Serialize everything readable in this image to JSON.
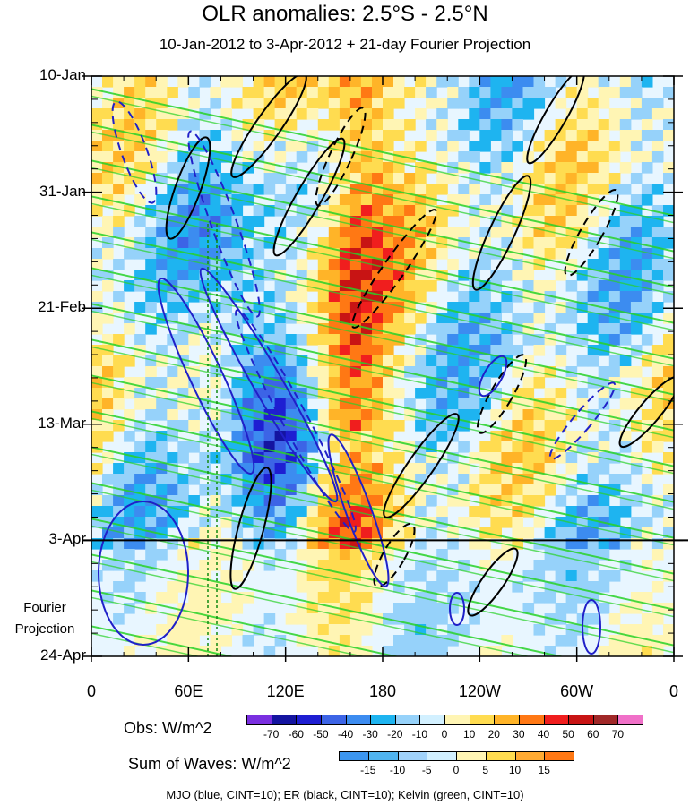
{
  "chart_data": {
    "type": "heatmap",
    "title": "OLR anomalies: 2.5°S - 2.5°N",
    "subtitle": "10-Jan-2012 to 3-Apr-2012 + 21-day Fourier Projection",
    "x_ticks": [
      "0",
      "60E",
      "120E",
      "180",
      "120W",
      "60W",
      "0"
    ],
    "y_ticks": [
      "10-Jan",
      "31-Jan",
      "21-Feb",
      "13-Mar",
      "3-Apr",
      "24-Apr"
    ],
    "projection_label_1": "Fourier",
    "projection_label_2": "Projection",
    "obs_colorbar": {
      "title": "Obs: W/m^2",
      "labels": [
        "-70",
        "-60",
        "-50",
        "-40",
        "-30",
        "-20",
        "-10",
        "0",
        "10",
        "20",
        "30",
        "40",
        "50",
        "60",
        "70"
      ],
      "colors": [
        "#7a2fe0",
        "#1414a0",
        "#1e1ed2",
        "#3c64e6",
        "#3c8cf0",
        "#1eb4f0",
        "#96d2fa",
        "#d2f0ff",
        "#fff5b4",
        "#ffdc50",
        "#ffb428",
        "#ff7814",
        "#f01e1e",
        "#c81414",
        "#a02828",
        "#f070c8"
      ]
    },
    "waves_colorbar": {
      "title": "Sum of Waves: W/m^2",
      "labels": [
        "-15",
        "-10",
        "-5",
        "0",
        "5",
        "10",
        "15"
      ],
      "colors": [
        "#3c96f0",
        "#50b4f0",
        "#a0d2fa",
        "#d2f0ff",
        "#fff5b4",
        "#ffdc50",
        "#ffaa32",
        "#ff7814"
      ]
    },
    "footer": "MJO (blue, CINT=10); ER (black, CINT=10); Kelvin (green, CINT=10)",
    "colors": {
      "mjo": "#2020c8",
      "er": "#000000",
      "kelvin": "#28d228"
    }
  }
}
